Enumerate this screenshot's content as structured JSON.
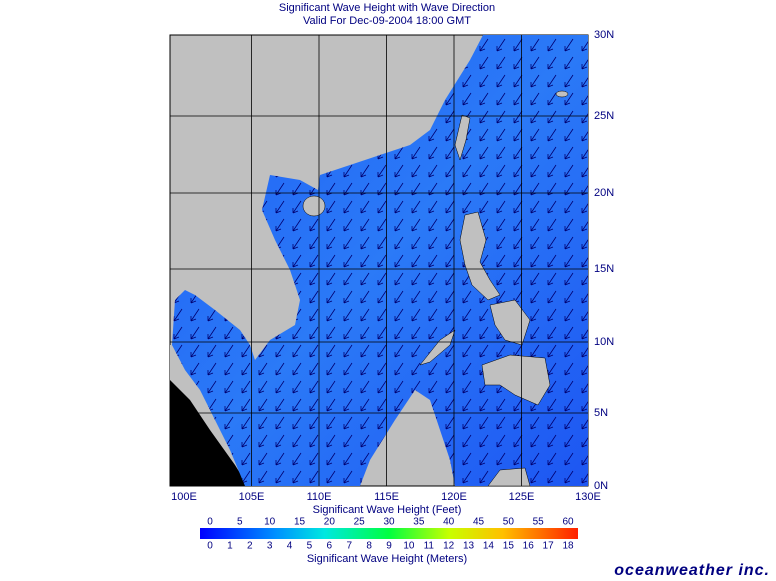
{
  "header": {
    "title": "Significant Wave Height with Wave Direction",
    "subtitle": "Valid For Dec-09-2004 18:00 GMT"
  },
  "map": {
    "lat_labels": [
      "30N",
      "25N",
      "20N",
      "15N",
      "10N",
      "5N",
      "0N"
    ],
    "lon_labels": [
      "100E",
      "105E",
      "110E",
      "115E",
      "120E",
      "125E",
      "130E"
    ]
  },
  "legend": {
    "feet_title": "Significant Wave Height (Feet)",
    "feet_ticks": [
      0,
      5,
      10,
      15,
      20,
      25,
      30,
      35,
      40,
      45,
      50,
      55,
      60
    ],
    "meters_title": "Significant Wave Height (Meters)",
    "meters_ticks": [
      0,
      1,
      2,
      3,
      4,
      5,
      6,
      7,
      8,
      9,
      10,
      11,
      12,
      13,
      14,
      15,
      16,
      17,
      18
    ]
  },
  "brand": "oceanweather inc."
}
